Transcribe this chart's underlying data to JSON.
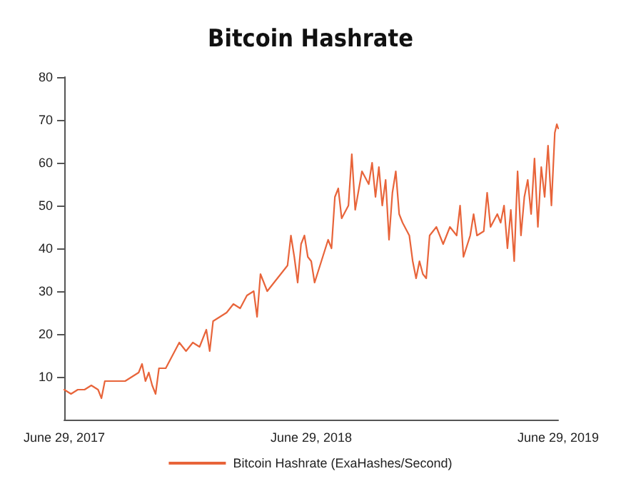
{
  "chart_data": {
    "type": "line",
    "title": "Bitcoin Hashrate",
    "x": [
      "2017-06-29",
      "2017-07-09",
      "2017-07-19",
      "2017-07-29",
      "2017-08-08",
      "2017-08-18",
      "2017-08-23",
      "2017-08-28",
      "2017-09-07",
      "2017-09-17",
      "2017-09-27",
      "2017-10-07",
      "2017-10-17",
      "2017-10-22",
      "2017-10-27",
      "2017-11-01",
      "2017-11-06",
      "2017-11-11",
      "2017-11-16",
      "2017-11-26",
      "2017-12-06",
      "2017-12-16",
      "2017-12-26",
      "2018-01-05",
      "2018-01-15",
      "2018-01-25",
      "2018-01-30",
      "2018-02-04",
      "2018-02-14",
      "2018-02-24",
      "2018-03-06",
      "2018-03-16",
      "2018-03-26",
      "2018-04-05",
      "2018-04-10",
      "2018-04-15",
      "2018-04-25",
      "2018-05-05",
      "2018-05-15",
      "2018-05-25",
      "2018-05-30",
      "2018-06-04",
      "2018-06-09",
      "2018-06-14",
      "2018-06-19",
      "2018-06-24",
      "2018-06-29",
      "2018-07-04",
      "2018-07-14",
      "2018-07-24",
      "2018-07-29",
      "2018-08-03",
      "2018-08-08",
      "2018-08-13",
      "2018-08-23",
      "2018-08-28",
      "2018-09-02",
      "2018-09-12",
      "2018-09-22",
      "2018-09-27",
      "2018-10-02",
      "2018-10-07",
      "2018-10-12",
      "2018-10-17",
      "2018-10-22",
      "2018-10-27",
      "2018-11-01",
      "2018-11-06",
      "2018-11-11",
      "2018-11-21",
      "2018-11-26",
      "2018-12-01",
      "2018-12-06",
      "2018-12-11",
      "2018-12-16",
      "2018-12-21",
      "2018-12-31",
      "2019-01-10",
      "2019-01-20",
      "2019-01-30",
      "2019-02-04",
      "2019-02-09",
      "2019-02-19",
      "2019-02-24",
      "2019-03-01",
      "2019-03-11",
      "2019-03-16",
      "2019-03-21",
      "2019-03-31",
      "2019-04-05",
      "2019-04-10",
      "2019-04-15",
      "2019-04-20",
      "2019-04-25",
      "2019-04-30",
      "2019-05-05",
      "2019-05-10",
      "2019-05-15",
      "2019-05-20",
      "2019-05-25",
      "2019-05-30",
      "2019-06-04",
      "2019-06-09",
      "2019-06-14",
      "2019-06-19",
      "2019-06-24",
      "2019-06-27",
      "2019-06-29"
    ],
    "series": [
      {
        "name": "Bitcoin Hashrate (ExaHashes/Second)",
        "color": "#e8643a",
        "values": [
          7,
          6,
          7,
          7,
          8,
          7,
          5,
          9,
          9,
          9,
          9,
          10,
          11,
          13,
          9,
          11,
          8,
          6,
          12,
          12,
          15,
          18,
          16,
          18,
          17,
          21,
          16,
          23,
          24,
          25,
          27,
          26,
          29,
          30,
          24,
          34,
          30,
          32,
          34,
          36,
          43,
          38,
          32,
          41,
          43,
          38,
          37,
          32,
          37,
          42,
          40,
          52,
          54,
          47,
          50,
          62,
          49,
          58,
          55,
          60,
          52,
          59,
          50,
          56,
          42,
          53,
          58,
          48,
          46,
          43,
          37,
          33,
          37,
          34,
          33,
          43,
          45,
          41,
          45,
          43,
          50,
          38,
          43,
          48,
          43,
          44,
          53,
          45,
          48,
          46,
          50,
          40,
          49,
          37,
          58,
          43,
          52,
          56,
          48,
          61,
          45,
          59,
          52,
          64,
          50,
          67,
          69,
          68
        ]
      }
    ],
    "xlim": [
      "2017-06-29",
      "2019-06-29"
    ],
    "xticks": [
      {
        "value": "2017-06-29",
        "label": "June 29, 2017"
      },
      {
        "value": "2018-06-29",
        "label": "June 29, 2018"
      },
      {
        "value": "2019-06-29",
        "label": "June 29, 2019"
      }
    ],
    "ylim": [
      0,
      80
    ],
    "yticks": [
      10,
      20,
      30,
      40,
      50,
      60,
      70,
      80
    ],
    "grid": false,
    "legend": "bottom",
    "marker": "none",
    "line_style": "solid"
  }
}
